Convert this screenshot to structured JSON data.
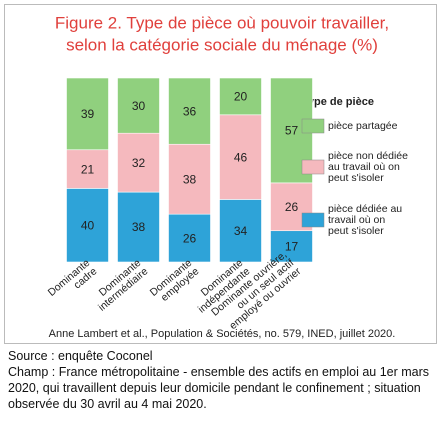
{
  "chart_data": {
    "type": "stacked-bar",
    "title": "Figure 2. Type de pièce où pouvoir travailler,",
    "subtitle": "selon la catégorie sociale du ménage (%)",
    "categories": [
      "Dominante\ncadre",
      "Dominante\nintermédiaire",
      "Dominante\nemployée",
      "Dominante\nindépendante",
      "Dominante ouvrière,\nou un seul actif\nemployé ou ouvrier"
    ],
    "ylim": [
      0,
      100
    ],
    "legend_title": "Type de pièce",
    "series": [
      {
        "name": "pièce dédiée au\ntravail où on\npeut s'isoler",
        "color": "#2ea3d8",
        "values": [
          40,
          38,
          26,
          34,
          17
        ]
      },
      {
        "name": "pièce non dédiée\nau travail où on\npeut s'isoler",
        "color": "#f5b9be",
        "values": [
          21,
          32,
          38,
          46,
          26
        ]
      },
      {
        "name": "pièce partagée",
        "color": "#90d07e",
        "values": [
          39,
          30,
          36,
          20,
          57
        ]
      }
    ],
    "caption": "Anne Lambert et al., Population & Sociétés, no. 579, INED, juillet 2020.",
    "notes": [
      "Source : enquête Coconel",
      "Champ : France métropolitaine - ensemble des actifs en emploi au 1er mars 2020, qui travaillent depuis leur domicile pendant le confinement ; situation observée du 30 avril au 4 mai 2020."
    ]
  }
}
